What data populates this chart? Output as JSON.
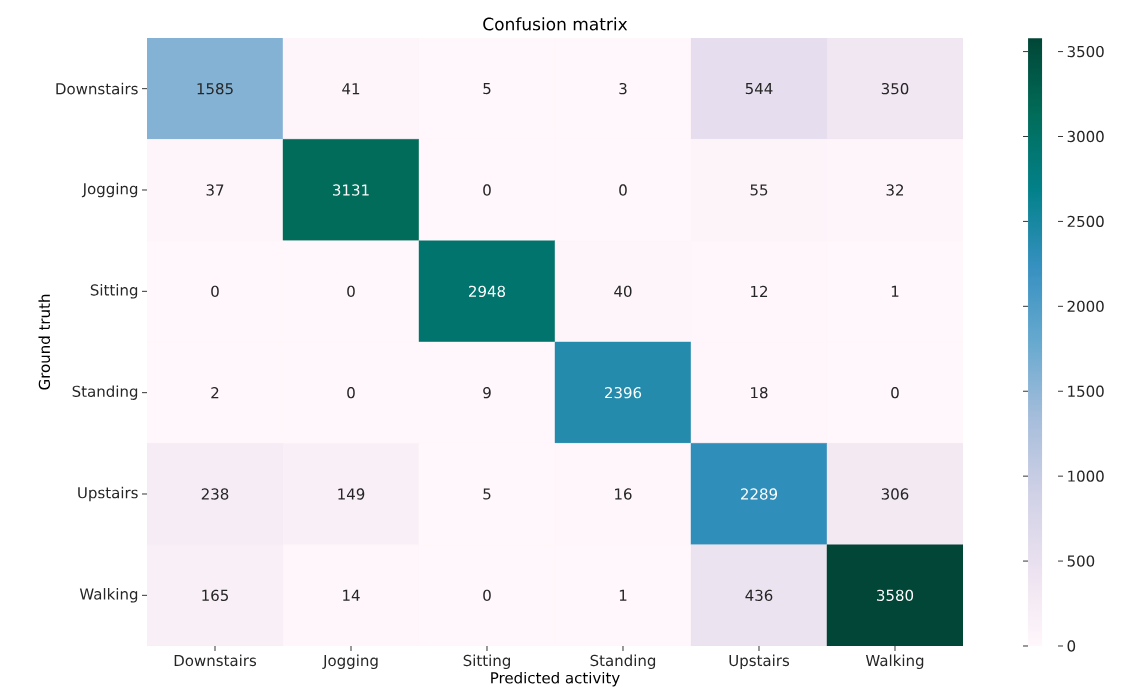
{
  "chart_data": {
    "type": "heatmap",
    "title": "Confusion matrix",
    "xlabel": "Predicted activity",
    "ylabel": "Ground truth",
    "categories": [
      "Downstairs",
      "Jogging",
      "Sitting",
      "Standing",
      "Upstairs",
      "Walking"
    ],
    "y_categories": [
      "Downstairs",
      "Jogging",
      "Sitting",
      "Standing",
      "Upstairs",
      "Walking"
    ],
    "cells": [
      [
        1585,
        41,
        5,
        3,
        544,
        350
      ],
      [
        37,
        3131,
        0,
        0,
        55,
        32
      ],
      [
        0,
        0,
        2948,
        40,
        12,
        1
      ],
      [
        2,
        0,
        9,
        2396,
        18,
        0
      ],
      [
        238,
        149,
        5,
        16,
        2289,
        306
      ],
      [
        165,
        14,
        0,
        1,
        436,
        3580
      ]
    ],
    "data_labels": true,
    "clim": [
      0,
      3580
    ],
    "cticks": [
      0,
      500,
      1000,
      1500,
      2000,
      2500,
      3000,
      3500
    ]
  }
}
